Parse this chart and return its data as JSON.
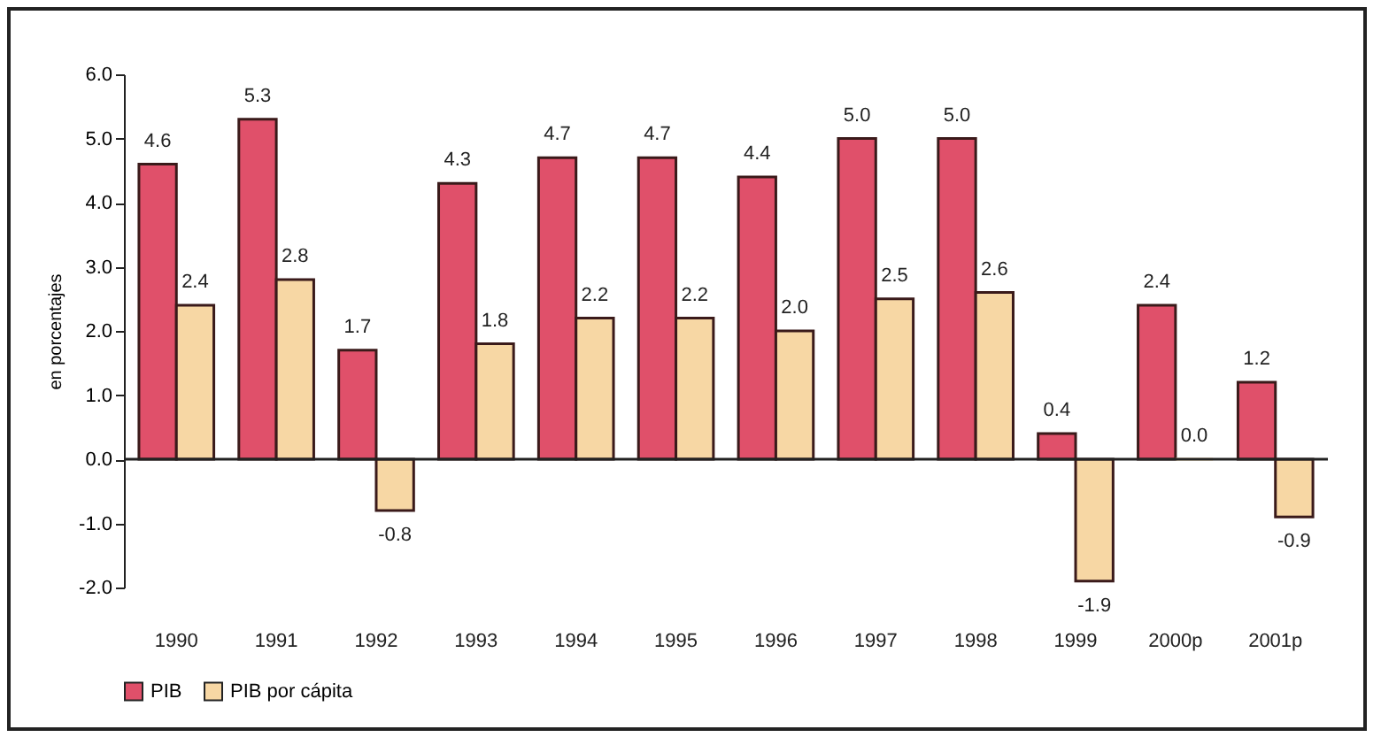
{
  "chart_data": {
    "type": "bar",
    "ylabel": "en porcentajes",
    "categories": [
      "1990",
      "1991",
      "1992",
      "1993",
      "1994",
      "1995",
      "1996",
      "1997",
      "1998",
      "1999",
      "2000p",
      "2001p"
    ],
    "series": [
      {
        "name": "PIB",
        "color": "#e0506a",
        "values": [
          4.6,
          5.3,
          1.7,
          4.3,
          4.7,
          4.7,
          4.4,
          5.0,
          5.0,
          0.4,
          2.4,
          1.2
        ],
        "value_labels": [
          "4.6",
          "5.3",
          "1.7",
          "4.3",
          "4.7",
          "4.7",
          "4.4",
          "5.0",
          "5.0",
          "0.4",
          "2.4",
          "1.2"
        ]
      },
      {
        "name": "PIB por cápita",
        "color": "#f7d7a4",
        "values": [
          2.4,
          2.8,
          -0.8,
          1.8,
          2.2,
          2.2,
          2.0,
          2.5,
          2.6,
          -1.9,
          0.0,
          -0.9
        ],
        "value_labels": [
          "2.4",
          "2.8",
          "-0.8",
          "1.8",
          "2.2",
          "2.2",
          "2.0",
          "2.5",
          "2.6",
          "-1.9",
          "0.0",
          "-0.9"
        ]
      }
    ],
    "ylim": [
      -2,
      6
    ],
    "yticks": [
      {
        "value": -2,
        "label": "-2.0"
      },
      {
        "value": -1,
        "label": "-1.0"
      },
      {
        "value": 0,
        "label": "0.0"
      },
      {
        "value": 1,
        "label": "1.0"
      },
      {
        "value": 2,
        "label": "2.0"
      },
      {
        "value": 3,
        "label": "3.0"
      },
      {
        "value": 4,
        "label": "4.0"
      },
      {
        "value": 5,
        "label": "5.0"
      },
      {
        "value": 6,
        "label": "6.0"
      }
    ],
    "ref_lines": [
      {
        "axis": "y",
        "value": 0
      }
    ],
    "legend": "bottom"
  }
}
